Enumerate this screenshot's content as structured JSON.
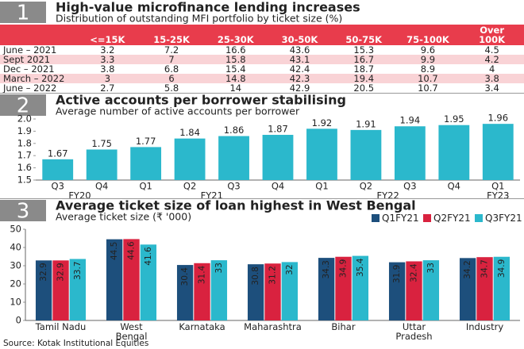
{
  "table": {
    "number": "1",
    "title": "High-value microfinance lending increases",
    "subtitle": "Distribution of outstanding MFI portfolio by ticket size (%)",
    "header_color": "#e83c4c",
    "stripe_color": "#f9d3d6",
    "columns": [
      "<=15K",
      "15-25K",
      "25-30K",
      "30-50K",
      "50-75K",
      "75-100K",
      "Over\n100K"
    ],
    "rows": [
      {
        "label": "June – 2021",
        "values": [
          3.2,
          7.2,
          16.6,
          43.6,
          15.3,
          9.6,
          4.5
        ]
      },
      {
        "label": "Sept 2021",
        "values": [
          3.3,
          7,
          15.8,
          43.1,
          16.7,
          9.9,
          4.2
        ]
      },
      {
        "label": "Dec – 2021",
        "values": [
          3.8,
          6.8,
          15.4,
          42.4,
          18.7,
          8.9,
          4
        ]
      },
      {
        "label": "March – 2022",
        "values": [
          3,
          6,
          14.8,
          42.3,
          19.4,
          10.7,
          3.8
        ]
      },
      {
        "label": "June – 2022",
        "values": [
          2.7,
          5.8,
          14,
          42.9,
          20.5,
          10.7,
          3.4
        ]
      }
    ]
  },
  "chart_data": [
    {
      "type": "bar",
      "number": "2",
      "title": "Active accounts per borrower stabilising",
      "subtitle": "Average  number of active accounts per borrower",
      "categories": [
        "Q3",
        "Q4",
        "Q1",
        "Q2",
        "Q3",
        "Q4",
        "Q1",
        "Q2",
        "Q3",
        "Q4",
        "Q1"
      ],
      "groups": [
        {
          "name": "FY20",
          "count": 2
        },
        {
          "name": "FY21",
          "count": 4
        },
        {
          "name": "FY22",
          "count": 4
        },
        {
          "name": "FY23",
          "count": 1
        }
      ],
      "values": [
        1.67,
        1.75,
        1.77,
        1.84,
        1.86,
        1.87,
        1.92,
        1.91,
        1.94,
        1.95,
        1.96
      ],
      "color": "#2bb8cc",
      "ylim": [
        1.5,
        2.0
      ],
      "yticks": [
        1.5,
        1.6,
        1.7,
        1.8,
        1.9,
        {
          "value": 2,
          "label": "2.0"
        }
      ],
      "grid": false
    },
    {
      "type": "grouped-bar",
      "number": "3",
      "title": "Average ticket size of loan highest in West Bengal",
      "subtitle": "Average ticket size (₹ '000)",
      "categories": [
        "Tamil Nadu",
        "West\nBengal",
        "Karnataka",
        "Maharashtra",
        "Bihar",
        "Uttar\nPradesh",
        "Industry"
      ],
      "series": [
        {
          "name": "Q1FY21",
          "color": "#1d4f7c",
          "values": [
            32.9,
            44.5,
            30.4,
            30.8,
            34.3,
            31.9,
            34.2
          ]
        },
        {
          "name": "Q2FY21",
          "color": "#d9223f",
          "values": [
            32.9,
            44.6,
            31.4,
            31.2,
            34.9,
            32.4,
            34.7
          ]
        },
        {
          "name": "Q3FY21",
          "color": "#2bb8cc",
          "values": [
            33.7,
            41.6,
            33,
            32,
            35.4,
            33,
            34.9
          ]
        }
      ],
      "ylim": [
        0,
        50
      ],
      "yticks": [
        0,
        10,
        20,
        30,
        40,
        50
      ],
      "grid": false,
      "legend": "top-right"
    }
  ],
  "source": "Source: Kotak Institutional Equities"
}
